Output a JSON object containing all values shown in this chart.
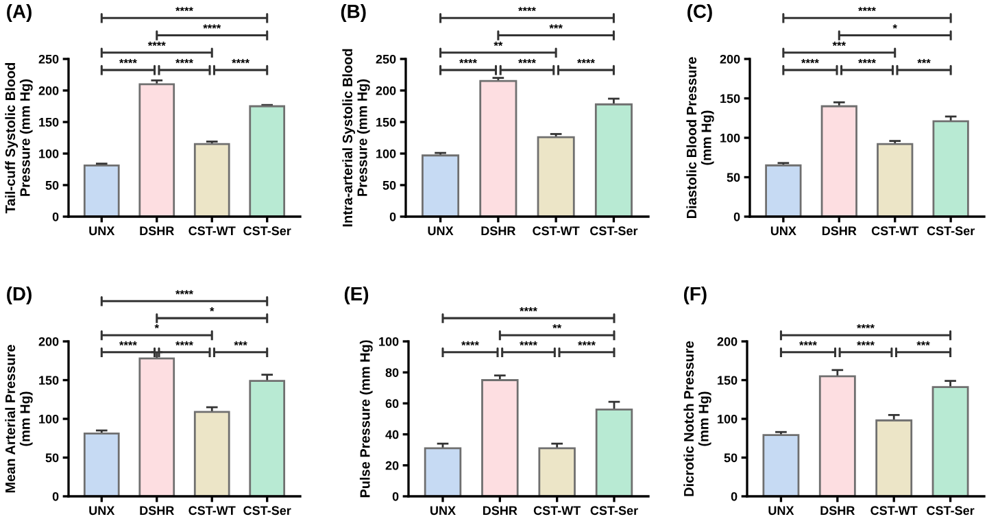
{
  "chart_data": [
    {
      "type": "bar",
      "title": "(A)",
      "ylabel": "Tail-cuff Systolic Blood\nPressure (mm Hg)",
      "categories": [
        "UNX",
        "DSHR",
        "CST-WT",
        "CST-Ser"
      ],
      "values": [
        81,
        210,
        115,
        175
      ],
      "errors": [
        3,
        6,
        4,
        2
      ],
      "colors": [
        "#c6daf3",
        "#fddee1",
        "#ece5c7",
        "#b8ead3"
      ],
      "ylim": [
        0,
        250
      ],
      "yticks": [
        0,
        50,
        100,
        150,
        200,
        250
      ],
      "annotations": [
        "****",
        "****",
        "****",
        "****",
        "****",
        "****"
      ]
    },
    {
      "type": "bar",
      "title": "(B)",
      "ylabel": "Intra-arterial Systolic Blood\nPressure (mm Hg)",
      "categories": [
        "UNX",
        "DSHR",
        "CST-WT",
        "CST-Ser"
      ],
      "values": [
        97,
        215,
        126,
        178
      ],
      "errors": [
        4,
        5,
        5,
        9
      ],
      "colors": [
        "#c6daf3",
        "#fddee1",
        "#ece5c7",
        "#b8ead3"
      ],
      "ylim": [
        0,
        250
      ],
      "yticks": [
        0,
        50,
        100,
        150,
        200,
        250
      ],
      "annotations": [
        "****",
        "***",
        "**",
        "****",
        "****",
        "****"
      ]
    },
    {
      "type": "bar",
      "title": "(C)",
      "ylabel": "Diastolic Blood Pressure\n(mm Hg)",
      "categories": [
        "UNX",
        "DSHR",
        "CST-WT",
        "CST-Ser"
      ],
      "values": [
        65,
        140,
        92,
        121
      ],
      "errors": [
        3,
        5,
        4,
        6
      ],
      "colors": [
        "#c6daf3",
        "#fddee1",
        "#ece5c7",
        "#b8ead3"
      ],
      "ylim": [
        0,
        200
      ],
      "yticks": [
        0,
        50,
        100,
        150,
        200
      ],
      "annotations": [
        "****",
        "*",
        "***",
        "****",
        "****",
        "***"
      ]
    },
    {
      "type": "bar",
      "title": "(D)",
      "ylabel": "Mean Arterial Pressure\n(mm Hg)",
      "categories": [
        "UNX",
        "DSHR",
        "CST-WT",
        "CST-Ser"
      ],
      "values": [
        81,
        178,
        109,
        149
      ],
      "errors": [
        4,
        8,
        6,
        8
      ],
      "colors": [
        "#c6daf3",
        "#fddee1",
        "#ece5c7",
        "#b8ead3"
      ],
      "ylim": [
        0,
        200
      ],
      "yticks": [
        0,
        50,
        100,
        150,
        200
      ],
      "annotations": [
        "****",
        "*",
        "*",
        "****",
        "****",
        "***"
      ]
    },
    {
      "type": "bar",
      "title": "(E)",
      "ylabel": "Pulse Pressure (mm Hg)",
      "categories": [
        "UNX",
        "DSHR",
        "CST-WT",
        "CST-Ser"
      ],
      "values": [
        31,
        75,
        31,
        56
      ],
      "errors": [
        3,
        3,
        3,
        5
      ],
      "colors": [
        "#c6daf3",
        "#fddee1",
        "#ece5c7",
        "#b8ead3"
      ],
      "ylim": [
        0,
        100
      ],
      "yticks": [
        0,
        20,
        40,
        60,
        80,
        100
      ],
      "annotations": [
        "****",
        "**",
        "****",
        "****",
        "****"
      ]
    },
    {
      "type": "bar",
      "title": "(F)",
      "ylabel": "Dicrotic Notch Pressure\n(mm Hg)",
      "categories": [
        "UNX",
        "DSHR",
        "CST-WT",
        "CST-Ser"
      ],
      "values": [
        79,
        155,
        98,
        141
      ],
      "errors": [
        4,
        8,
        7,
        8
      ],
      "colors": [
        "#c6daf3",
        "#fddee1",
        "#ece5c7",
        "#b8ead3"
      ],
      "ylim": [
        0,
        200
      ],
      "yticks": [
        0,
        50,
        100,
        150,
        200
      ],
      "annotations": [
        "****",
        "****",
        "****",
        "***"
      ]
    }
  ]
}
